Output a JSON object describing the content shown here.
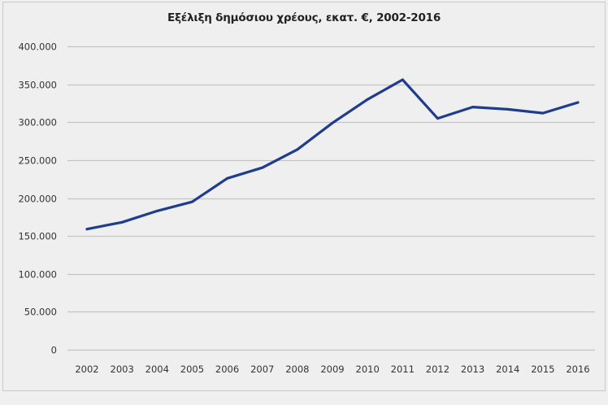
{
  "chart_data": {
    "type": "line",
    "title": "Εξέλιξη δημόσιου χρέους, εκατ. €, 2002-2016",
    "xlabel": "",
    "ylabel": "",
    "categories": [
      "2002",
      "2003",
      "2004",
      "2005",
      "2006",
      "2007",
      "2008",
      "2009",
      "2010",
      "2011",
      "2012",
      "2013",
      "2014",
      "2015",
      "2016"
    ],
    "series": [
      {
        "name": "Δημόσιο χρέος",
        "values": [
          159000,
          168000,
          183000,
          195000,
          226000,
          240000,
          264000,
          299000,
          330000,
          356000,
          305000,
          320000,
          317000,
          312000,
          326000
        ],
        "color": "#1f3d8c"
      }
    ],
    "ylim": [
      0,
      400000
    ],
    "yticks": [
      0,
      50000,
      100000,
      150000,
      200000,
      250000,
      300000,
      350000,
      400000
    ],
    "ytick_labels": [
      "0",
      "50.000",
      "100.000",
      "150.000",
      "200.000",
      "250.000",
      "300.000",
      "350.000",
      "400.000"
    ],
    "grid": true,
    "gridline_color": "#c4c4c4",
    "legend": "none"
  }
}
